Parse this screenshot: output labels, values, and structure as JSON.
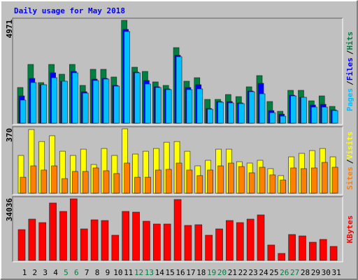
{
  "title": "Daily usage for May 2018",
  "legend_separator": "/",
  "chart_data": [
    {
      "type": "bar",
      "ylim": [
        0,
        4971
      ],
      "yticks": [
        4971
      ],
      "series": [
        {
          "name": "Hits",
          "color": "#008040",
          "values": [
            1725,
            2840,
            1961,
            2840,
            2367,
            2840,
            1826,
            2604,
            2604,
            2232,
            4971,
            2705,
            2502,
            1995,
            1826,
            3652,
            2029,
            2198,
            1150,
            1150,
            1386,
            1285,
            1758,
            2300,
            1048,
            575,
            1589,
            1589,
            1082,
            1319,
            812
          ]
        },
        {
          "name": "Files",
          "color": "#0000ff",
          "values": [
            1319,
            2164,
            1860,
            2435,
            2029,
            2503,
            1522,
            2131,
            2164,
            1826,
            4532,
            2469,
            2063,
            1759,
            1657,
            3281,
            1725,
            1860,
            710,
            1048,
            1048,
            981,
            1556,
            1928,
            609,
            440,
            1353,
            1251,
            879,
            913,
            643
          ]
        },
        {
          "name": "Pages",
          "color": "#00c0ff",
          "values": [
            1116,
            1962,
            1860,
            2198,
            2029,
            2435,
            1454,
            2063,
            2131,
            1792,
            4430,
            2435,
            1894,
            1725,
            1623,
            3213,
            1623,
            1657,
            676,
            1015,
            981,
            947,
            1522,
            1420,
            507,
            338,
            1319,
            1251,
            778,
            778,
            609
          ]
        }
      ]
    },
    {
      "type": "bar",
      "ylim": [
        0,
        370
      ],
      "yticks": [
        370
      ],
      "series": [
        {
          "name": "Visits",
          "color": "#ffff00",
          "values": [
            217,
            366,
            297,
            330,
            241,
            217,
            253,
            165,
            257,
            217,
            370,
            225,
            241,
            257,
            293,
            297,
            241,
            157,
            189,
            253,
            253,
            181,
            173,
            189,
            141,
            101,
            209,
            229,
            245,
            257,
            209
          ]
        },
        {
          "name": "Sites",
          "color": "#ff8000",
          "values": [
            92,
            157,
            133,
            157,
            84,
            125,
            125,
            145,
            129,
            113,
            173,
            92,
            92,
            133,
            137,
            173,
            133,
            101,
            133,
            157,
            173,
            153,
            117,
            149,
            105,
            76,
            145,
            141,
            145,
            177,
            149
          ]
        }
      ]
    },
    {
      "type": "bar",
      "ylim": [
        0,
        34036
      ],
      "yticks": [
        34036
      ],
      "series": [
        {
          "name": "KBytes",
          "color": "#ff0000",
          "values": [
            17019,
            22821,
            20887,
            31718,
            27076,
            34036,
            17406,
            22434,
            22047,
            13925,
            27076,
            26689,
            21661,
            20114,
            20114,
            33651,
            19340,
            19727,
            13925,
            17406,
            22047,
            20887,
            22821,
            25142,
            8510,
            3868,
            14312,
            13538,
            10057,
            11604,
            7736
          ]
        }
      ],
      "categories": [
        "1",
        "2",
        "3",
        "4",
        "5",
        "6",
        "7",
        "8",
        "9",
        "10",
        "11",
        "12",
        "13",
        "14",
        "15",
        "16",
        "17",
        "18",
        "19",
        "20",
        "21",
        "22",
        "23",
        "24",
        "25",
        "26",
        "27",
        "28",
        "29",
        "30",
        "31"
      ],
      "category_colors": [
        "#000000",
        "#000000",
        "#000000",
        "#000000",
        "#008040",
        "#008040",
        "#000000",
        "#000000",
        "#000000",
        "#000000",
        "#000000",
        "#008040",
        "#008040",
        "#000000",
        "#000000",
        "#000000",
        "#000000",
        "#000000",
        "#008040",
        "#008040",
        "#000000",
        "#000000",
        "#000000",
        "#000000",
        "#000000",
        "#008040",
        "#008040",
        "#000000",
        "#000000",
        "#000000",
        "#000000"
      ]
    }
  ]
}
